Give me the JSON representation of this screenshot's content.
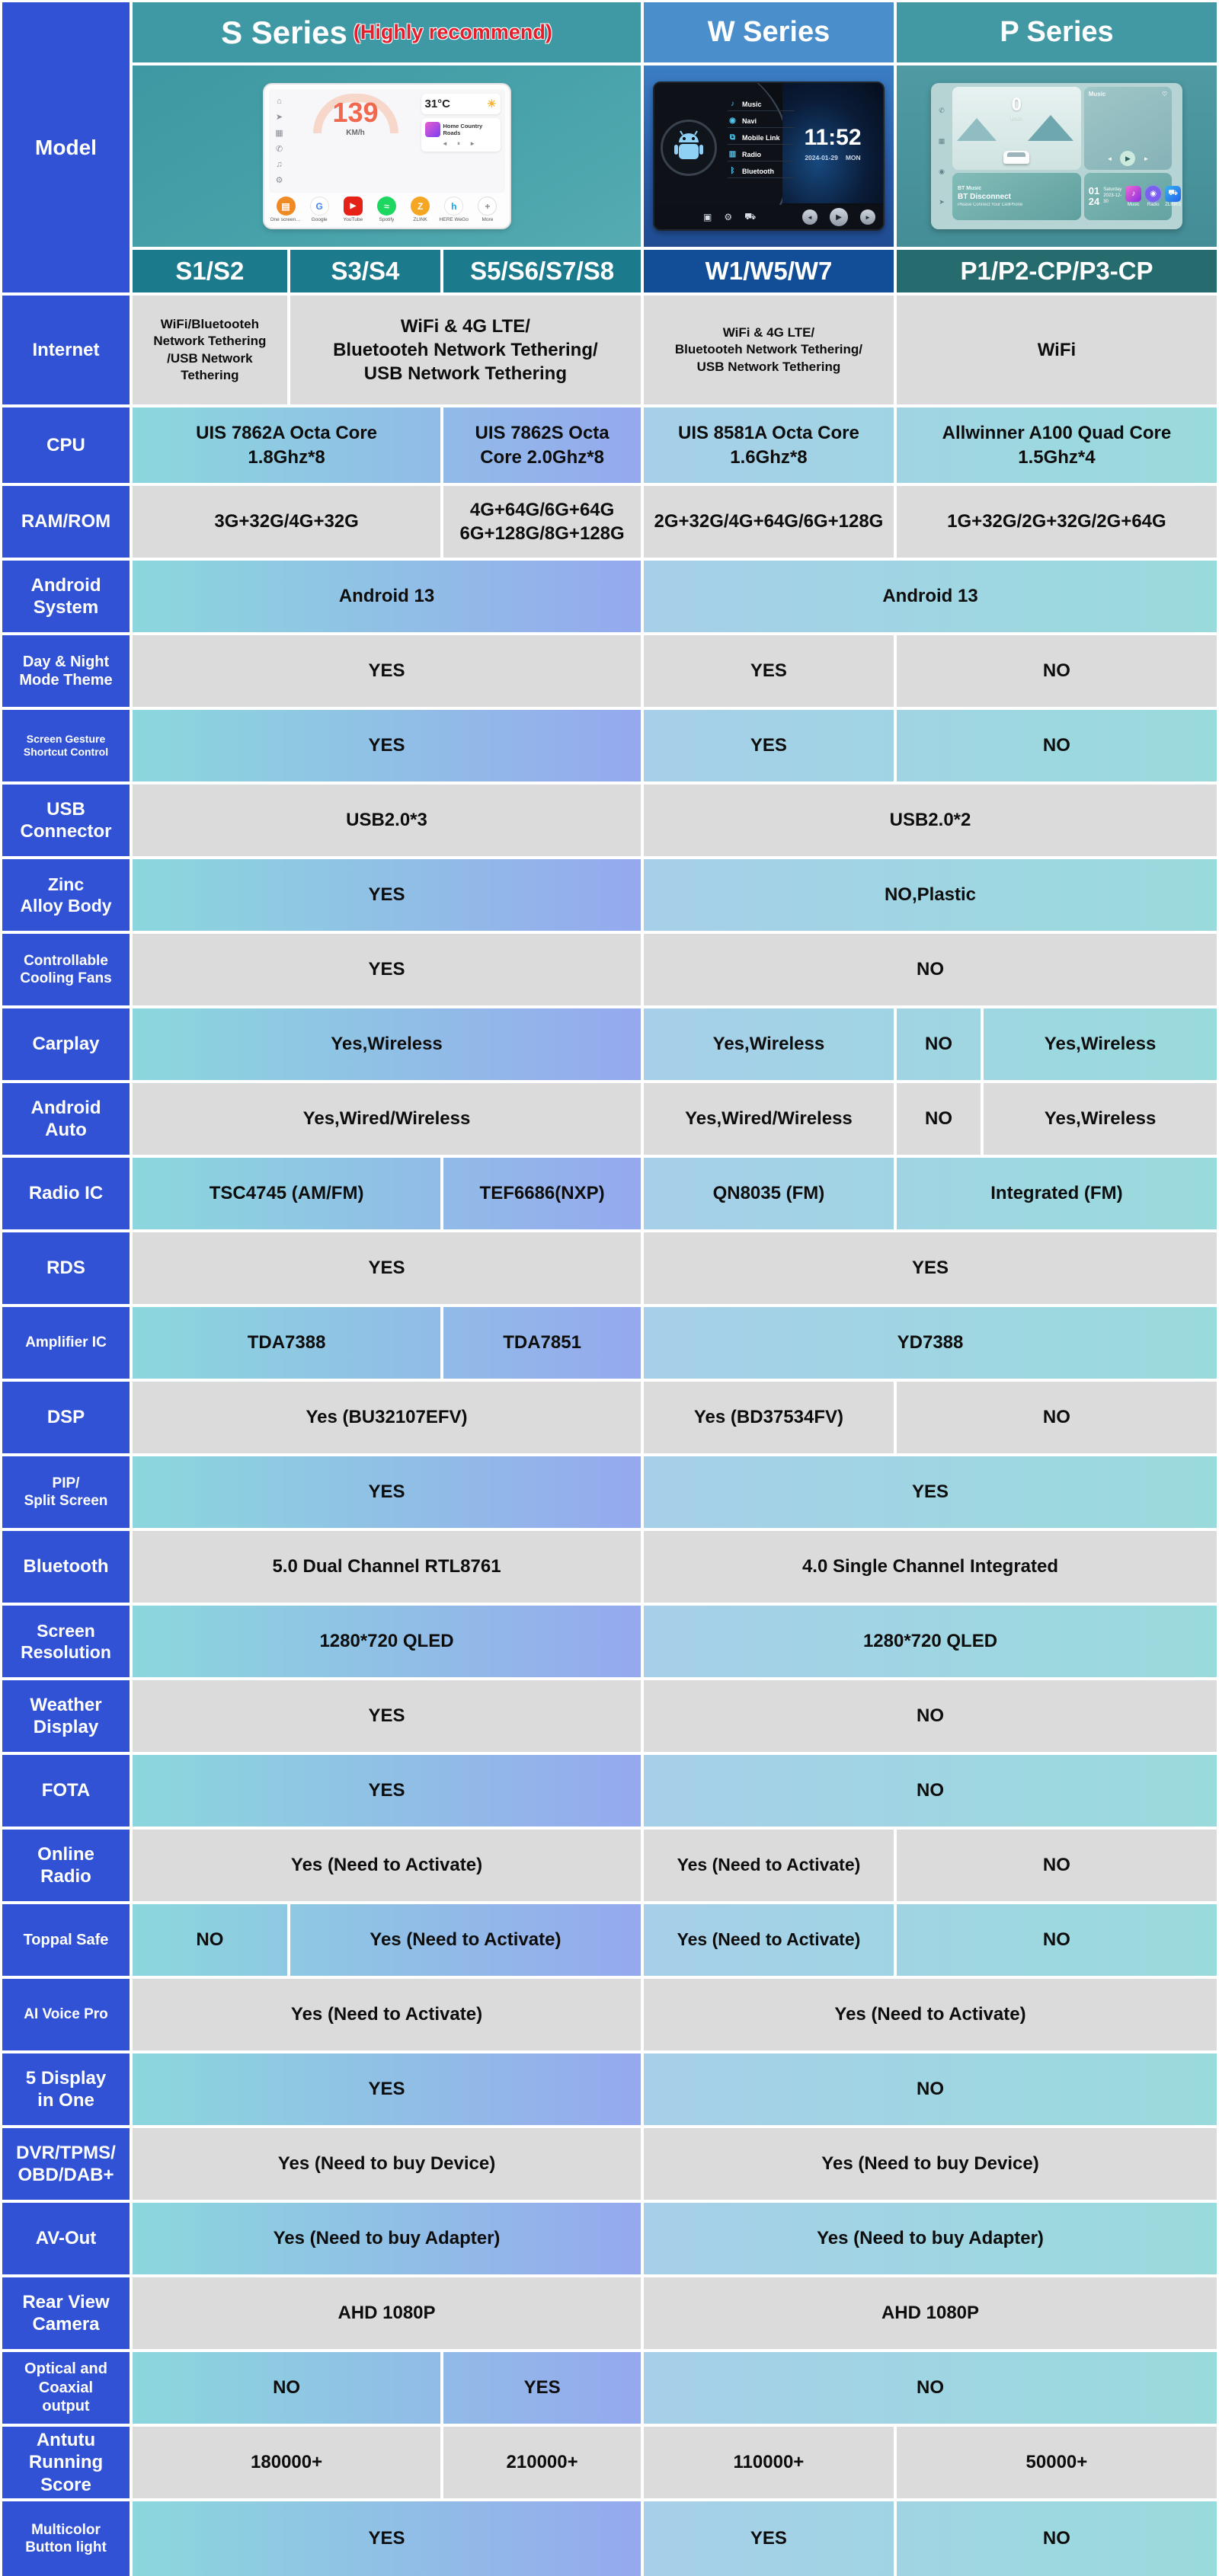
{
  "table": {
    "model_label": "Model",
    "series": [
      {
        "title": "S Series",
        "badge": "(Highly recommend)",
        "submodels": [
          "S1/S2",
          "S3/S4",
          "S5/S6/S7/S8"
        ]
      },
      {
        "title": "W Series",
        "badge": "",
        "submodels": [
          "W1/W5/W7"
        ]
      },
      {
        "title": "P Series",
        "badge": "",
        "submodels": [
          "P1/P2-CP/P3-CP"
        ]
      }
    ],
    "rows": [
      {
        "label": "Internet",
        "kind": "gray",
        "s": [
          {
            "span": "1",
            "t": "WiFi/Bluetooteh\nNetwork Tethering\n/USB Network\nTethering"
          },
          {
            "span": "23",
            "t": "WiFi & 4G LTE/\nBluetooteh Network Tethering/\nUSB Network Tethering"
          }
        ],
        "wp": [
          {
            "span": "w",
            "t": "WiFi & 4G LTE/\nBluetooteh Network Tethering/\nUSB Network Tethering"
          },
          {
            "span": "p",
            "t": "WiFi"
          }
        ]
      },
      {
        "label": "CPU",
        "kind": "color",
        "s": [
          {
            "span": "12",
            "t": "UIS 7862A Octa Core\n1.8Ghz*8"
          },
          {
            "span": "3",
            "t": "UIS 7862S Octa\nCore 2.0Ghz*8"
          }
        ],
        "wp": [
          {
            "span": "w",
            "t": "UIS 8581A Octa Core\n1.6Ghz*8"
          },
          {
            "span": "p",
            "t": "Allwinner A100 Quad Core\n1.5Ghz*4"
          }
        ]
      },
      {
        "label": "RAM/ROM",
        "kind": "gray",
        "s": [
          {
            "span": "12",
            "t": "3G+32G/4G+32G"
          },
          {
            "span": "3",
            "t": "4G+64G/6G+64G\n6G+128G/8G+128G"
          }
        ],
        "wp": [
          {
            "span": "w",
            "t": "2G+32G/4G+64G/6G+128G"
          },
          {
            "span": "p",
            "t": "1G+32G/2G+32G/2G+64G"
          }
        ]
      },
      {
        "label": "Android\nSystem",
        "kind": "color",
        "s": [
          {
            "span": "123",
            "t": "Android 13"
          }
        ],
        "wp": [
          {
            "span": "wp",
            "t": "Android 13"
          }
        ]
      },
      {
        "label": "Day & Night\nMode Theme",
        "kind": "gray",
        "s": [
          {
            "span": "123",
            "t": "YES"
          }
        ],
        "wp": [
          {
            "span": "w",
            "t": "YES"
          },
          {
            "span": "p",
            "t": "NO"
          }
        ]
      },
      {
        "label": "Screen Gesture\nShortcut Control",
        "kind": "color",
        "s": [
          {
            "span": "123",
            "t": "YES"
          }
        ],
        "wp": [
          {
            "span": "w",
            "t": "YES"
          },
          {
            "span": "p",
            "t": "NO"
          }
        ]
      },
      {
        "label": "USB\nConnector",
        "kind": "gray",
        "s": [
          {
            "span": "123",
            "t": "USB2.0*3"
          }
        ],
        "wp": [
          {
            "span": "wp",
            "t": "USB2.0*2"
          }
        ]
      },
      {
        "label": "Zinc\nAlloy Body",
        "kind": "color",
        "s": [
          {
            "span": "123",
            "t": "YES"
          }
        ],
        "wp": [
          {
            "span": "wp",
            "t": "NO,Plastic"
          }
        ]
      },
      {
        "label": "Controllable\nCooling Fans",
        "kind": "gray",
        "s": [
          {
            "span": "123",
            "t": "YES"
          }
        ],
        "wp": [
          {
            "span": "wp",
            "t": "NO"
          }
        ]
      },
      {
        "label": "Carplay",
        "kind": "color",
        "s": [
          {
            "span": "123",
            "t": "Yes,Wireless"
          }
        ],
        "wp": [
          {
            "span": "w",
            "t": "Yes,Wireless"
          },
          {
            "span": "p1",
            "t": "NO"
          },
          {
            "span": "p2",
            "t": "Yes,Wireless"
          }
        ]
      },
      {
        "label": "Android\nAuto",
        "kind": "gray",
        "s": [
          {
            "span": "123",
            "t": "Yes,Wired/Wireless"
          }
        ],
        "wp": [
          {
            "span": "w",
            "t": "Yes,Wired/Wireless"
          },
          {
            "span": "p1",
            "t": "NO"
          },
          {
            "span": "p2",
            "t": "Yes,Wireless"
          }
        ]
      },
      {
        "label": "Radio IC",
        "kind": "color",
        "s": [
          {
            "span": "12",
            "t": "TSC4745 (AM/FM)"
          },
          {
            "span": "3",
            "t": "TEF6686(NXP)"
          }
        ],
        "wp": [
          {
            "span": "w",
            "t": "QN8035 (FM)"
          },
          {
            "span": "p",
            "t": "Integrated (FM)"
          }
        ]
      },
      {
        "label": "RDS",
        "kind": "gray",
        "s": [
          {
            "span": "123",
            "t": "YES"
          }
        ],
        "wp": [
          {
            "span": "wp",
            "t": "YES"
          }
        ]
      },
      {
        "label": "Amplifier IC",
        "kind": "color",
        "s": [
          {
            "span": "12",
            "t": "TDA7388"
          },
          {
            "span": "3",
            "t": "TDA7851"
          }
        ],
        "wp": [
          {
            "span": "wp",
            "t": "YD7388"
          }
        ]
      },
      {
        "label": "DSP",
        "kind": "gray",
        "s": [
          {
            "span": "123",
            "t": "Yes (BU32107EFV)"
          }
        ],
        "wp": [
          {
            "span": "w",
            "t": "Yes (BD37534FV)"
          },
          {
            "span": "p",
            "t": "NO"
          }
        ]
      },
      {
        "label": "PIP/\nSplit Screen",
        "kind": "color",
        "s": [
          {
            "span": "123",
            "t": "YES"
          }
        ],
        "wp": [
          {
            "span": "wp",
            "t": "YES"
          }
        ]
      },
      {
        "label": "Bluetooth",
        "kind": "gray",
        "s": [
          {
            "span": "123",
            "t": "5.0 Dual Channel RTL8761"
          }
        ],
        "wp": [
          {
            "span": "wp",
            "t": "4.0 Single Channel Integrated"
          }
        ]
      },
      {
        "label": "Screen\nResolution",
        "kind": "color",
        "s": [
          {
            "span": "123",
            "t": "1280*720 QLED"
          }
        ],
        "wp": [
          {
            "span": "wp",
            "t": "1280*720 QLED"
          }
        ]
      },
      {
        "label": "Weather\nDisplay",
        "kind": "gray",
        "s": [
          {
            "span": "123",
            "t": "YES"
          }
        ],
        "wp": [
          {
            "span": "wp",
            "t": "NO"
          }
        ]
      },
      {
        "label": "FOTA",
        "kind": "color",
        "s": [
          {
            "span": "123",
            "t": "YES"
          }
        ],
        "wp": [
          {
            "span": "wp",
            "t": "NO"
          }
        ]
      },
      {
        "label": "Online\nRadio",
        "kind": "gray",
        "s": [
          {
            "span": "123",
            "t": "Yes (Need to Activate)"
          }
        ],
        "wp": [
          {
            "span": "w",
            "t": "Yes (Need to Activate)"
          },
          {
            "span": "p",
            "t": "NO"
          }
        ]
      },
      {
        "label": "Toppal Safe",
        "kind": "color",
        "s": [
          {
            "span": "1",
            "t": "NO"
          },
          {
            "span": "23",
            "t": "Yes (Need to Activate)"
          }
        ],
        "wp": [
          {
            "span": "w",
            "t": "Yes (Need to Activate)"
          },
          {
            "span": "p",
            "t": "NO"
          }
        ]
      },
      {
        "label": "AI Voice Pro",
        "kind": "gray",
        "s": [
          {
            "span": "123",
            "t": "Yes (Need to Activate)"
          }
        ],
        "wp": [
          {
            "span": "wp",
            "t": "Yes (Need to Activate)"
          }
        ]
      },
      {
        "label": "5 Display\nin One",
        "kind": "color",
        "s": [
          {
            "span": "123",
            "t": "YES"
          }
        ],
        "wp": [
          {
            "span": "wp",
            "t": "NO"
          }
        ]
      },
      {
        "label": "DVR/TPMS/\nOBD/DAB+",
        "kind": "gray",
        "s": [
          {
            "span": "123",
            "t": "Yes (Need to buy Device)"
          }
        ],
        "wp": [
          {
            "span": "wp",
            "t": "Yes (Need to buy Device)"
          }
        ]
      },
      {
        "label": "AV-Out",
        "kind": "color",
        "s": [
          {
            "span": "123",
            "t": "Yes (Need to buy Adapter)"
          }
        ],
        "wp": [
          {
            "span": "wp",
            "t": "Yes (Need to buy Adapter)"
          }
        ]
      },
      {
        "label": "Rear View\nCamera",
        "kind": "gray",
        "s": [
          {
            "span": "123",
            "t": "AHD 1080P"
          }
        ],
        "wp": [
          {
            "span": "wp",
            "t": "AHD 1080P"
          }
        ]
      },
      {
        "label": "Optical and\nCoaxial\noutput",
        "kind": "color",
        "s": [
          {
            "span": "12",
            "t": "NO"
          },
          {
            "span": "3",
            "t": "YES"
          }
        ],
        "wp": [
          {
            "span": "wp",
            "t": "NO"
          }
        ]
      },
      {
        "label": "Antutu\nRunning\nScore",
        "kind": "gray",
        "s": [
          {
            "span": "12",
            "t": "180000+"
          },
          {
            "span": "3",
            "t": "210000+"
          }
        ],
        "wp": [
          {
            "span": "w",
            "t": "110000+"
          },
          {
            "span": "p",
            "t": "50000+"
          }
        ]
      },
      {
        "label": "Multicolor\nButton light",
        "kind": "color",
        "s": [
          {
            "span": "123",
            "t": "YES"
          }
        ],
        "wp": [
          {
            "span": "w",
            "t": "YES"
          },
          {
            "span": "p",
            "t": "NO"
          }
        ]
      }
    ]
  },
  "devices": {
    "s": {
      "speed": "139",
      "speed_unit": "KM/h",
      "temp": "31°C",
      "song": "Home Country Roads",
      "apps": [
        "One screen in...",
        "Google",
        "YouTube",
        "Spotify",
        "ZLINK",
        "HERE WeGo",
        "More"
      ]
    },
    "w": {
      "time": "11:52",
      "date": "2024-01-29",
      "day": "MON",
      "menu": [
        "Music",
        "Navi",
        "Mobile Link",
        "Radio",
        "Bluetooth"
      ]
    },
    "p": {
      "speed": "0",
      "unit": "km/h",
      "music_label": "Music",
      "bt_title": "BT Music",
      "bt_status": "BT Disconnect",
      "bt_hint": "Please Connect Your CellPhone",
      "date_day": "01",
      "date_num": "24",
      "date_sub": "Saturday",
      "date_sub2": "2023-12-30",
      "apps": [
        "Music",
        "Radio",
        "ZLINKS"
      ]
    }
  }
}
